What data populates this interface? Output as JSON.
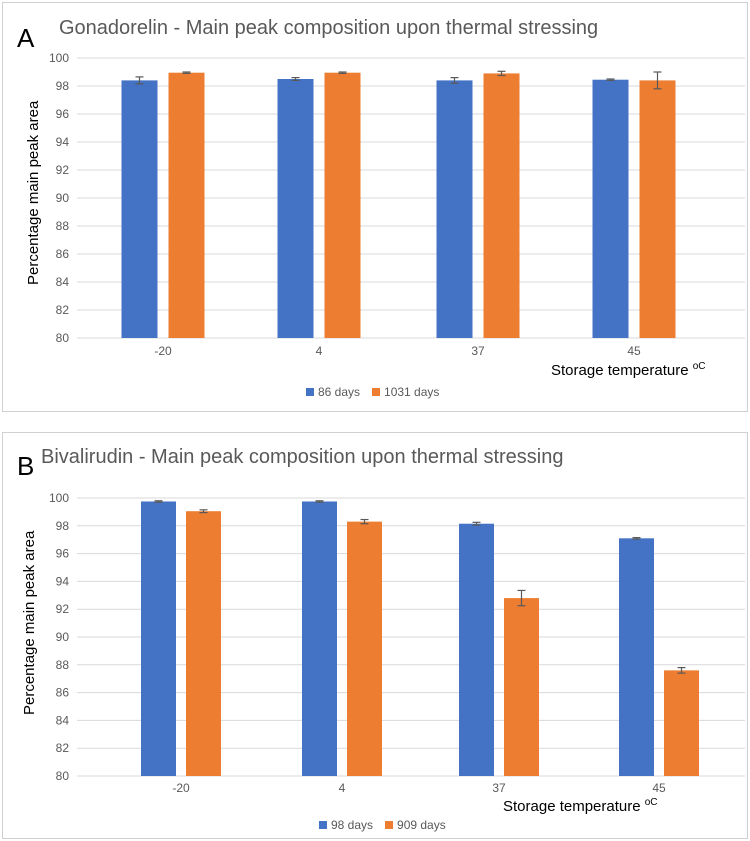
{
  "chart_data": [
    {
      "type": "bar",
      "panel": "A",
      "title": "Gonadorelin - Main peak composition upon thermal stressing",
      "xlabel": "Storage temperature",
      "xlabel_unit": "oC",
      "ylabel": "Percentage  main peak area",
      "categories": [
        "-20",
        "4",
        "37",
        "45"
      ],
      "ylim": [
        80,
        100
      ],
      "yticks": [
        80,
        82,
        84,
        86,
        88,
        90,
        92,
        94,
        96,
        98,
        100
      ],
      "grid": true,
      "legend_position": "bottom",
      "series": [
        {
          "name": "86 days",
          "color": "#4472C4",
          "values": [
            98.4,
            98.5,
            98.4,
            98.45
          ],
          "errors": [
            0.25,
            0.1,
            0.2,
            0.05
          ]
        },
        {
          "name": "1031 days",
          "color": "#ED7D31",
          "values": [
            98.95,
            98.95,
            98.9,
            98.4
          ],
          "errors": [
            0.05,
            0.05,
            0.15,
            0.6
          ]
        }
      ]
    },
    {
      "type": "bar",
      "panel": "B",
      "title": "Bivalirudin - Main peak composition upon thermal stressing",
      "xlabel": "Storage temperature",
      "xlabel_unit": "oC",
      "ylabel": "Percentage main peak area",
      "categories": [
        "-20",
        "4",
        "37",
        "45"
      ],
      "ylim": [
        80,
        100
      ],
      "yticks": [
        80,
        82,
        84,
        86,
        88,
        90,
        92,
        94,
        96,
        98,
        100
      ],
      "grid": true,
      "legend_position": "bottom",
      "series": [
        {
          "name": "98 days",
          "color": "#4472C4",
          "values": [
            99.75,
            99.75,
            98.15,
            97.1
          ],
          "errors": [
            0.05,
            0.05,
            0.1,
            0.05
          ]
        },
        {
          "name": "909 days",
          "color": "#ED7D31",
          "values": [
            99.05,
            98.3,
            92.8,
            87.6
          ],
          "errors": [
            0.1,
            0.15,
            0.55,
            0.2
          ]
        }
      ]
    }
  ]
}
